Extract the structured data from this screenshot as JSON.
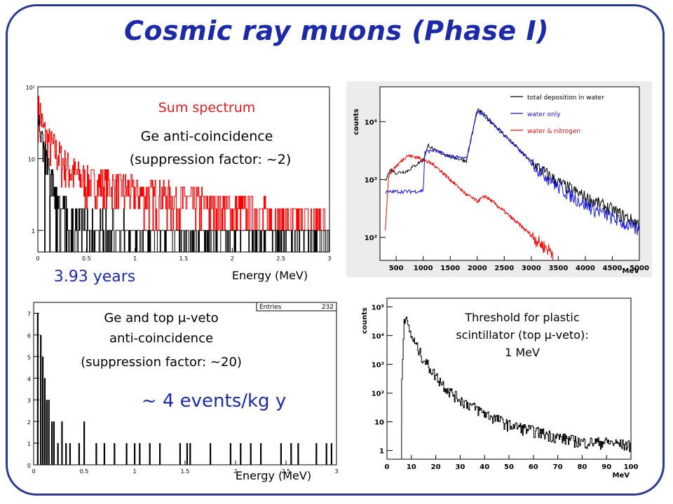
{
  "title": "Cosmic ray muons (Phase I)",
  "chart_data": [
    {
      "id": "sum",
      "type": "histogram",
      "annotations": {
        "label1": "Sum spectrum",
        "label2": "Ge anti-coincidence",
        "label3": "(suppression factor: ~2)",
        "exposure": "3.93 years",
        "xlabel": "Energy (MeV)"
      },
      "x_ticks": [
        "0",
        "0.5",
        "1",
        "1.5",
        "2",
        "2.5",
        "3"
      ],
      "y_ticks": [
        "1",
        "10",
        "10²"
      ],
      "xlim": [
        0,
        3
      ],
      "ylim": [
        0.5,
        100
      ],
      "log_y": true,
      "series": [
        {
          "color": "#ff0000",
          "values": [
            [
              0.02,
              48
            ],
            [
              0.05,
              26
            ],
            [
              0.1,
              18
            ],
            [
              0.2,
              12
            ],
            [
              0.3,
              8
            ],
            [
              0.4,
              6
            ],
            [
              0.5,
              5
            ],
            [
              0.8,
              4
            ],
            [
              1.2,
              3
            ],
            [
              1.6,
              2.5
            ],
            [
              2.0,
              2
            ],
            [
              2.5,
              1.5
            ],
            [
              3.0,
              1.3
            ]
          ]
        },
        {
          "color": "#000000",
          "values": [
            [
              0.02,
              30
            ],
            [
              0.05,
              15
            ],
            [
              0.1,
              8
            ],
            [
              0.15,
              5
            ],
            [
              0.2,
              3
            ],
            [
              0.3,
              2
            ],
            [
              0.5,
              1.3
            ],
            [
              1.0,
              1
            ],
            [
              3.0,
              1
            ]
          ]
        }
      ],
      "colors": {
        "label1": "#e01b1b",
        "exposure": "#1c2aa8"
      }
    },
    {
      "id": "sim",
      "type": "line",
      "y_title": "counts",
      "x_unit": "MeV",
      "x_ticks": [
        "500",
        "1000",
        "1500",
        "2000",
        "2500",
        "3000",
        "3500",
        "4000",
        "4500",
        "5000"
      ],
      "y_ticks": [
        "10²",
        "10³",
        "10⁴"
      ],
      "xlim": [
        200,
        5000
      ],
      "ylim": [
        40,
        40000
      ],
      "log_y": true,
      "series": [
        {
          "name": "total deposition in water",
          "color": "#000000",
          "values": [
            [
              300,
              1000
            ],
            [
              400,
              1500
            ],
            [
              500,
              1300
            ],
            [
              700,
              1400
            ],
            [
              1000,
              2200
            ],
            [
              1100,
              4000
            ],
            [
              1200,
              3200
            ],
            [
              1500,
              2500
            ],
            [
              1800,
              2100
            ],
            [
              2000,
              16000
            ],
            [
              2100,
              14000
            ],
            [
              2500,
              6000
            ],
            [
              3000,
              2000
            ],
            [
              3500,
              900
            ],
            [
              4000,
              500
            ],
            [
              4500,
              300
            ],
            [
              5000,
              170
            ]
          ]
        },
        {
          "name": "water only",
          "color": "#1515e0",
          "values": [
            [
              300,
              600
            ],
            [
              500,
              620
            ],
            [
              800,
              620
            ],
            [
              1000,
              640
            ],
            [
              1030,
              3000
            ],
            [
              1200,
              3200
            ],
            [
              1500,
              2500
            ],
            [
              1800,
              2300
            ],
            [
              2000,
              15000
            ],
            [
              2100,
              13500
            ],
            [
              2500,
              5800
            ],
            [
              3000,
              2000
            ],
            [
              3500,
              750
            ],
            [
              4000,
              370
            ],
            [
              4500,
              220
            ],
            [
              5000,
              130
            ]
          ]
        },
        {
          "name": "water & nitrogen",
          "color": "#e81010",
          "values": [
            [
              300,
              140
            ],
            [
              360,
              1200
            ],
            [
              500,
              1700
            ],
            [
              700,
              2600
            ],
            [
              900,
              2400
            ],
            [
              1200,
              1800
            ],
            [
              1500,
              1000
            ],
            [
              1800,
              550
            ],
            [
              2000,
              420
            ],
            [
              2150,
              520
            ],
            [
              2300,
              400
            ],
            [
              2500,
              280
            ],
            [
              2800,
              160
            ],
            [
              3000,
              110
            ],
            [
              3200,
              75
            ],
            [
              3400,
              55
            ]
          ]
        }
      ]
    },
    {
      "id": "veto",
      "type": "histogram",
      "annotations": {
        "label1": "Ge and top μ-veto",
        "label2": "anti-coincidence",
        "label3": "(suppression factor: ~20)",
        "rate": "~ 4 events/kg y",
        "xlabel": "Energy (MeV)"
      },
      "stats": {
        "label": "Entries",
        "value": "232"
      },
      "x_ticks": [
        "0",
        "0.5",
        "1",
        "1.5",
        "2",
        "2.5",
        "3"
      ],
      "y_ticks": [
        "0",
        "1",
        "2",
        "3",
        "4",
        "5",
        "6",
        "7"
      ],
      "xlim": [
        0,
        3
      ],
      "ylim": [
        0,
        7.5
      ],
      "peaks": [
        [
          0.04,
          7
        ],
        [
          0.07,
          6
        ],
        [
          0.09,
          5
        ],
        [
          0.11,
          4
        ],
        [
          0.13,
          3
        ],
        [
          0.15,
          3
        ],
        [
          0.18,
          2
        ],
        [
          0.2,
          2
        ],
        [
          0.24,
          1
        ],
        [
          0.28,
          2
        ],
        [
          0.32,
          1
        ],
        [
          0.36,
          1
        ],
        [
          0.45,
          1
        ],
        [
          0.5,
          2
        ],
        [
          0.62,
          1
        ],
        [
          0.7,
          1
        ],
        [
          0.8,
          1
        ],
        [
          0.92,
          1
        ],
        [
          1.0,
          1
        ],
        [
          1.05,
          1
        ],
        [
          1.15,
          1
        ],
        [
          1.25,
          1
        ],
        [
          1.45,
          1
        ],
        [
          1.52,
          1
        ],
        [
          1.55,
          1
        ],
        [
          1.75,
          1
        ],
        [
          1.95,
          1
        ],
        [
          2.05,
          1
        ],
        [
          2.15,
          1
        ],
        [
          2.25,
          1
        ],
        [
          2.45,
          1
        ],
        [
          2.55,
          1
        ],
        [
          2.62,
          1
        ],
        [
          2.8,
          1
        ],
        [
          2.9,
          1
        ],
        [
          2.95,
          1
        ]
      ],
      "colors": {
        "rate": "#1c2aa8"
      }
    },
    {
      "id": "plastic",
      "type": "histogram",
      "annotations": {
        "label1": "Threshold for plastic",
        "label2": "scintillator (top μ-veto):",
        "label3": "1 MeV"
      },
      "y_title": "counts",
      "x_unit": "MeV",
      "x_ticks": [
        "0",
        "10",
        "20",
        "30",
        "40",
        "50",
        "60",
        "70",
        "80",
        "90",
        "100"
      ],
      "y_ticks": [
        "1",
        "10",
        "10²",
        "10³",
        "10⁴",
        "10⁵"
      ],
      "xlim": [
        0,
        100
      ],
      "ylim": [
        0.5,
        200000
      ],
      "log_y": true,
      "values": [
        [
          0,
          0
        ],
        [
          5,
          80
        ],
        [
          6,
          300
        ],
        [
          7,
          50000
        ],
        [
          8,
          30000
        ],
        [
          10,
          9000
        ],
        [
          15,
          1500
        ],
        [
          20,
          400
        ],
        [
          25,
          130
        ],
        [
          30,
          60
        ],
        [
          40,
          20
        ],
        [
          50,
          8
        ],
        [
          60,
          5
        ],
        [
          70,
          3
        ],
        [
          80,
          2
        ],
        [
          90,
          2
        ],
        [
          100,
          1.5
        ]
      ]
    }
  ]
}
